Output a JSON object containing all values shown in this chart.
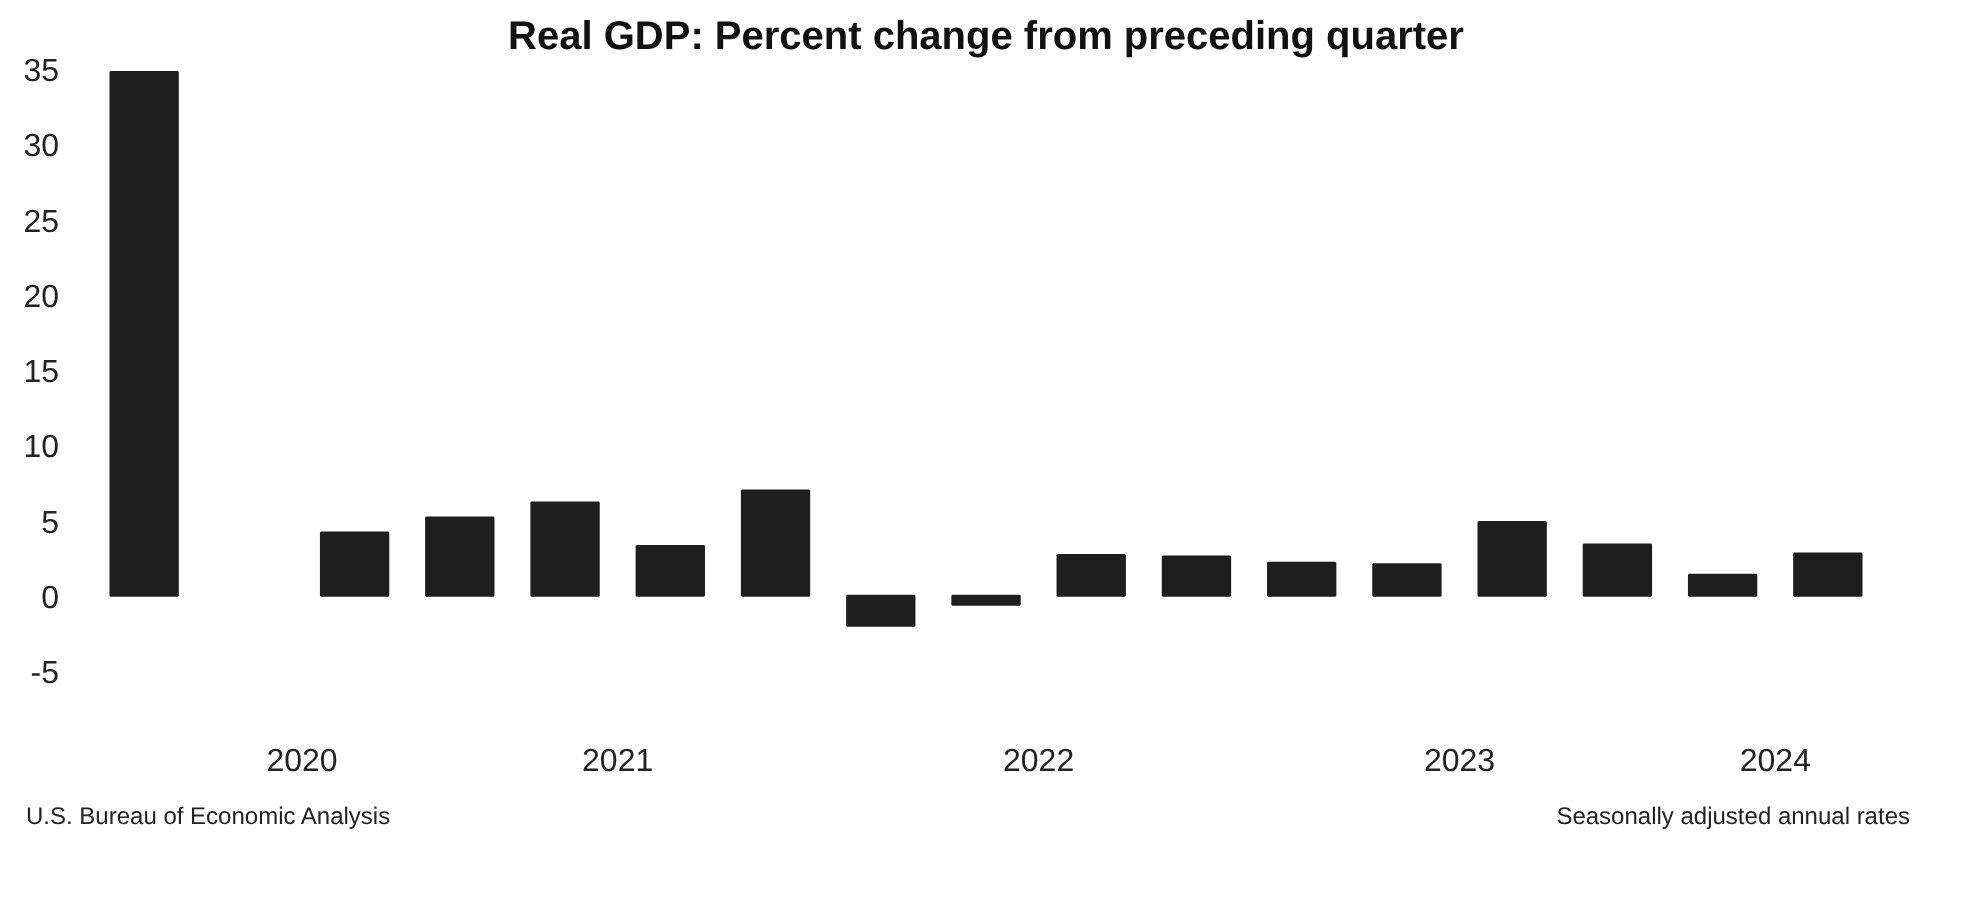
{
  "chart_data": {
    "type": "bar",
    "title": "Real GDP: Percent change from preceding quarter",
    "categories": [
      null,
      "2020",
      null,
      null,
      "2021",
      null,
      null,
      null,
      "2022",
      null,
      null,
      null,
      "2023",
      null,
      null,
      "2024",
      null
    ],
    "values": [
      34.8,
      null,
      4.2,
      5.2,
      6.2,
      3.3,
      7.0,
      -2.0,
      -0.6,
      2.7,
      2.6,
      2.2,
      2.1,
      4.9,
      3.4,
      1.4,
      2.8
    ],
    "color": "#1e1e1e",
    "ylim": [
      -5,
      35
    ],
    "yticks": [
      -5,
      0,
      5,
      10,
      15,
      20,
      25,
      30,
      35
    ],
    "grid": false,
    "annotations": [
      "U.S. Bureau of Economic Analysis",
      "Seasonally adjusted annual rates"
    ]
  }
}
